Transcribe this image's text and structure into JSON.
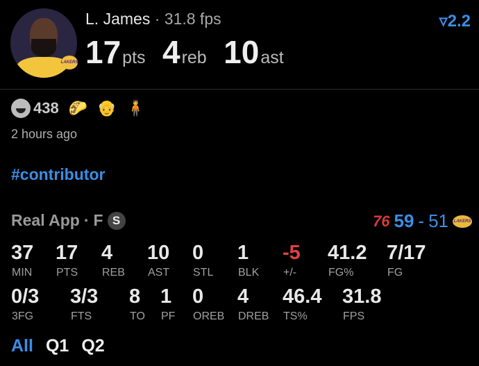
{
  "header": {
    "player_name": "L. James",
    "separator": " · ",
    "fps_text": "31.8 fps",
    "team_logo_text": "LAKERS",
    "stats": [
      {
        "value": "17",
        "unit": "pts"
      },
      {
        "value": "4",
        "unit": "reb"
      },
      {
        "value": "10",
        "unit": "ast"
      }
    ],
    "rank_icon": "filter-triangle-icon",
    "rank_value": "2.2"
  },
  "reactions": {
    "count": "438",
    "emojis": [
      "🌮",
      "👴",
      "🧍"
    ]
  },
  "timestamp": "2 hours ago",
  "hashtag": "#contributor",
  "game": {
    "source": "Real App",
    "separator": " · ",
    "position": "F",
    "badge": "S",
    "home_logo": "76",
    "home_score": "59",
    "dash": "-",
    "away_score": "51",
    "away_logo": "LAKERS"
  },
  "stats_row1": [
    {
      "value": "37",
      "label": "MIN"
    },
    {
      "value": "17",
      "label": "PTS"
    },
    {
      "value": "4",
      "label": "REB"
    },
    {
      "value": "10",
      "label": "AST"
    },
    {
      "value": "0",
      "label": "STL"
    },
    {
      "value": "1",
      "label": "BLK"
    },
    {
      "value": "-5",
      "label": "+/-"
    },
    {
      "value": "41.2",
      "label": "FG%"
    },
    {
      "value": "7/17",
      "label": "FG"
    }
  ],
  "stats_row2": [
    {
      "value": "0/3",
      "label": "3FG"
    },
    {
      "value": "3/3",
      "label": "FTS"
    },
    {
      "value": "8",
      "label": "TO"
    },
    {
      "value": "1",
      "label": "PF"
    },
    {
      "value": "0",
      "label": "OREB"
    },
    {
      "value": "4",
      "label": "DREB"
    },
    {
      "value": "46.4",
      "label": "TS%"
    },
    {
      "value": "31.8",
      "label": "FPS"
    }
  ],
  "tabs": [
    {
      "label": "All",
      "active": true
    },
    {
      "label": "Q1"
    },
    {
      "label": "Q2"
    }
  ],
  "colors": {
    "accent": "#3a8ee6",
    "negative": "#e04040",
    "background": "#000000"
  }
}
